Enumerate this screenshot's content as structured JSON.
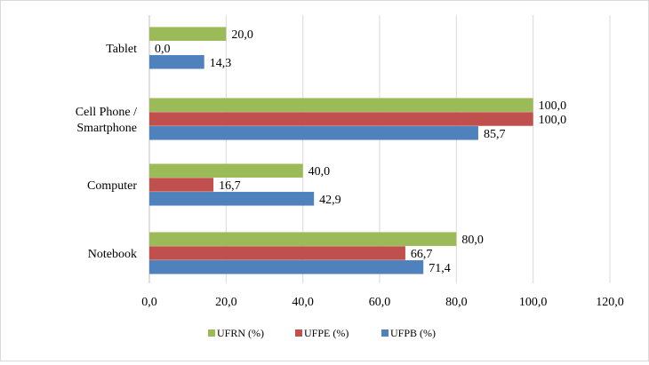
{
  "chart_data": {
    "type": "bar",
    "orientation": "horizontal",
    "categories": [
      "Tablet",
      "Cell Phone / Smartphone",
      "Computer",
      "Notebook"
    ],
    "category_lines": [
      [
        "Tablet"
      ],
      [
        "Cell Phone /",
        "Smartphone"
      ],
      [
        "Computer"
      ],
      [
        "Notebook"
      ]
    ],
    "series": [
      {
        "name": "UFRN (%)",
        "color": "#9bbb59",
        "values": [
          20.0,
          100.0,
          40.0,
          80.0
        ],
        "labels": [
          "20,0",
          "100,0",
          "40,0",
          "80,0"
        ]
      },
      {
        "name": "UFPE (%)",
        "color": "#c0504d",
        "values": [
          0.0,
          100.0,
          16.7,
          66.7
        ],
        "labels": [
          "0,0",
          "100,0",
          "16,7",
          "66,7"
        ]
      },
      {
        "name": "UFPB (%)",
        "color": "#4f81bd",
        "values": [
          14.3,
          85.7,
          42.9,
          71.4
        ],
        "labels": [
          "14,3",
          "85,7",
          "42,9",
          "71,4"
        ]
      }
    ],
    "xlim": [
      0,
      120
    ],
    "xticks": [
      0,
      20,
      40,
      60,
      80,
      100,
      120
    ],
    "xtick_labels": [
      "0,0",
      "20,0",
      "40,0",
      "60,0",
      "80,0",
      "100,0",
      "120,0"
    ],
    "grid": true,
    "legend_position": "bottom",
    "title": "",
    "xlabel": "",
    "ylabel": ""
  }
}
